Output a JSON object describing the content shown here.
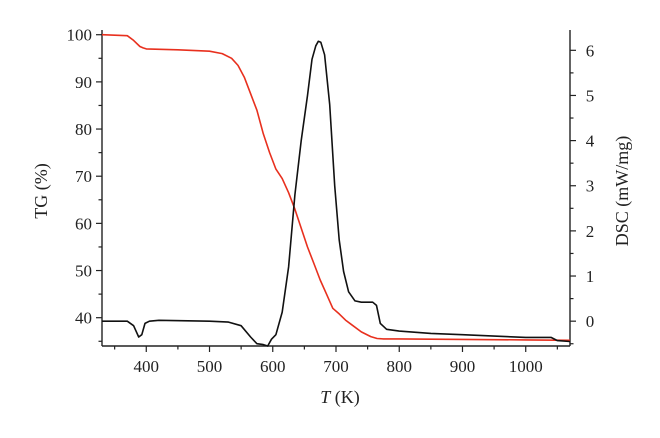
{
  "chart_data": {
    "type": "line",
    "xlabel": {
      "variable": "T",
      "unit": " (K)"
    },
    "ylabel_left": "TG (%)",
    "ylabel_right": "DSC (mW/mg)",
    "xlim": [
      330,
      1070
    ],
    "ylim_left": [
      34,
      101
    ],
    "ylim_right": [
      -0.55,
      6.45
    ],
    "x_ticks": [
      400,
      500,
      600,
      700,
      800,
      900,
      1000
    ],
    "y_ticks_left": [
      40,
      50,
      60,
      70,
      80,
      90,
      100
    ],
    "y_ticks_right": [
      0,
      1,
      2,
      3,
      4,
      5,
      6
    ],
    "grid": false,
    "series": [
      {
        "axis": "left",
        "color": "#e8301e",
        "x": [
          330,
          370,
          380,
          390,
          395,
          400,
          450,
          500,
          520,
          535,
          545,
          555,
          565,
          575,
          585,
          595,
          605,
          615,
          625,
          635,
          645,
          655,
          665,
          675,
          685,
          695,
          705,
          715,
          725,
          740,
          755,
          765,
          775,
          800,
          900,
          1000,
          1070
        ],
        "y": [
          100,
          99.8,
          98.8,
          97.5,
          97.2,
          97,
          96.8,
          96.5,
          96,
          95,
          93.5,
          91,
          87.5,
          84,
          79,
          75,
          71.5,
          69.5,
          66.5,
          63,
          59,
          55,
          51.5,
          48,
          45,
          42,
          40.8,
          39.5,
          38.5,
          37,
          36,
          35.6,
          35.5,
          35.5,
          35.4,
          35.3,
          35.2
        ]
      },
      {
        "axis": "right",
        "color": "#111111",
        "x": [
          330,
          370,
          380,
          388,
          393,
          398,
          405,
          420,
          500,
          530,
          550,
          565,
          575,
          585,
          592,
          598,
          605,
          615,
          625,
          635,
          645,
          655,
          662,
          668,
          672,
          676,
          682,
          690,
          698,
          705,
          712,
          720,
          730,
          740,
          750,
          758,
          764,
          770,
          780,
          800,
          850,
          900,
          950,
          1000,
          1040,
          1050,
          1070
        ],
        "y": [
          0,
          0,
          -0.1,
          -0.35,
          -0.3,
          -0.05,
          0,
          0.02,
          0,
          -0.02,
          -0.1,
          -0.35,
          -0.5,
          -0.52,
          -0.55,
          -0.4,
          -0.3,
          0.2,
          1.2,
          2.8,
          4.0,
          5.0,
          5.8,
          6.1,
          6.2,
          6.18,
          5.9,
          4.8,
          3.0,
          1.8,
          1.1,
          0.65,
          0.45,
          0.42,
          0.42,
          0.42,
          0.35,
          -0.05,
          -0.18,
          -0.22,
          -0.27,
          -0.3,
          -0.33,
          -0.36,
          -0.36,
          -0.43,
          -0.45
        ]
      }
    ]
  }
}
